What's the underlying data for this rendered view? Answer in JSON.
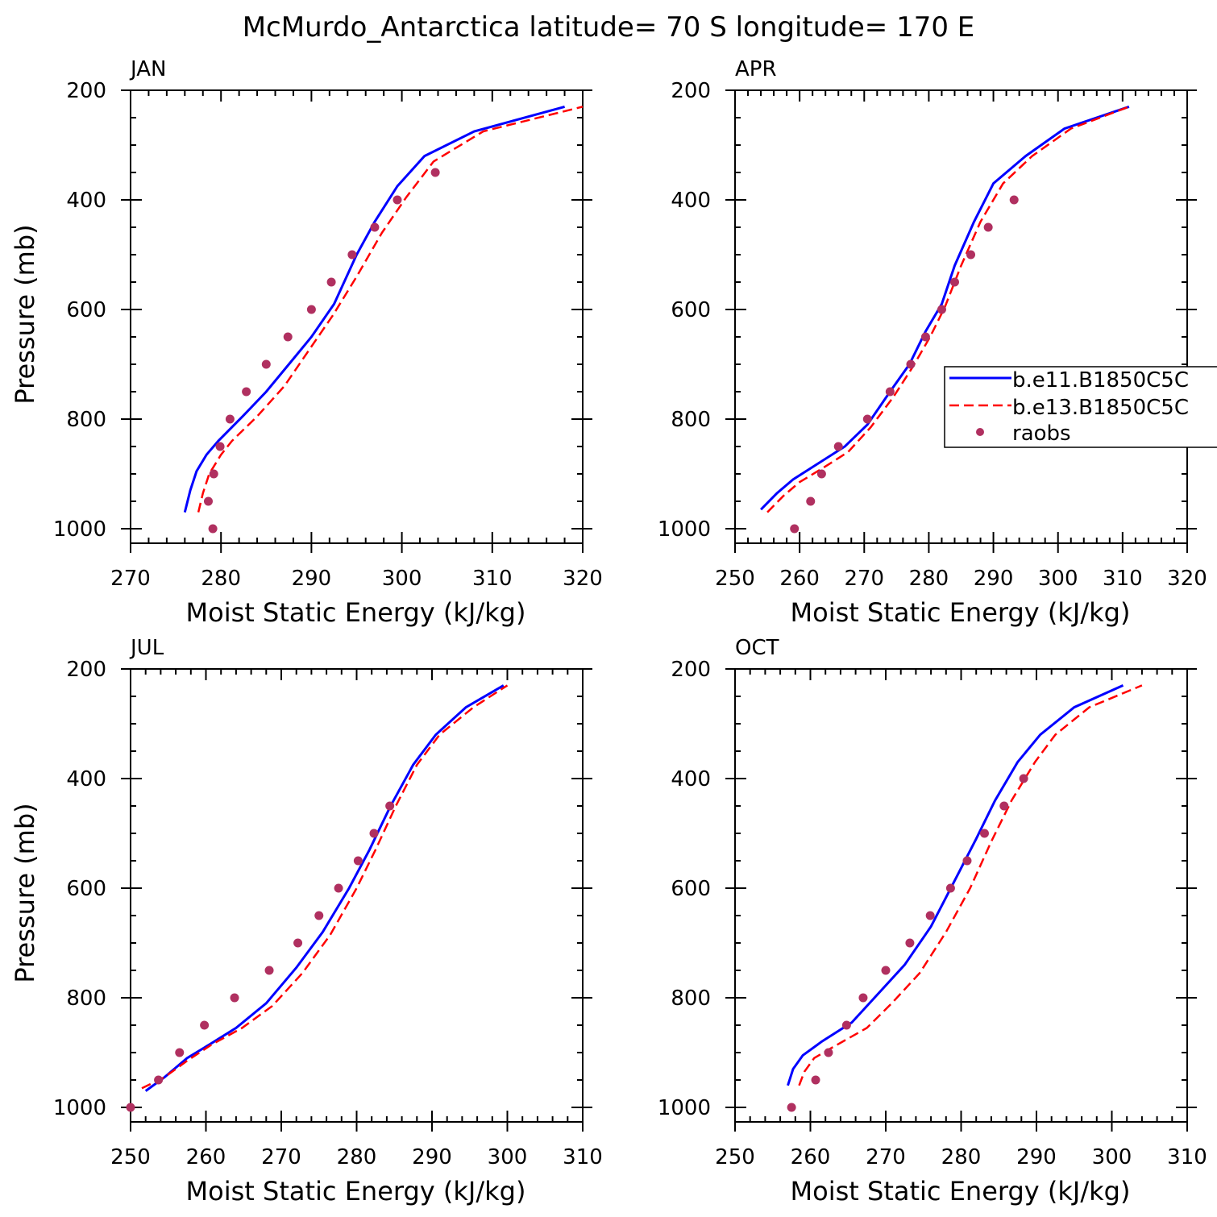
{
  "title": "McMurdo_Antarctica  latitude= 70 S longitude= 170 E",
  "colors": {
    "series1": "#0000ff",
    "series2": "#ff0000",
    "raobs": "#b03060",
    "axis": "#000000"
  },
  "legend": {
    "entries": [
      "b.e11.B1850C5C",
      "b.e13.B1850C5C",
      "raobs"
    ]
  },
  "chart_data": [
    {
      "type": "line",
      "panel": "JAN",
      "xlabel": "Moist Static Energy (kJ/kg)",
      "ylabel": "Pressure (mb)",
      "xlim": [
        270,
        320
      ],
      "ylim": [
        1000,
        200
      ],
      "x_ticks": [
        270,
        280,
        290,
        300,
        310,
        320
      ],
      "y_ticks": [
        200,
        400,
        600,
        800,
        1000
      ],
      "series": [
        {
          "name": "b.e11.B1850C5C",
          "style": "solid",
          "points": [
            [
              276.0,
              970
            ],
            [
              276.6,
              930
            ],
            [
              277.3,
              895
            ],
            [
              278.4,
              865
            ],
            [
              279.7,
              840
            ],
            [
              282.4,
              795
            ],
            [
              285.0,
              750
            ],
            [
              287.5,
              700
            ],
            [
              290.0,
              650
            ],
            [
              292.5,
              590
            ],
            [
              295.0,
              500
            ],
            [
              297.0,
              440
            ],
            [
              299.5,
              375
            ],
            [
              302.5,
              320
            ],
            [
              308.0,
              275
            ],
            [
              318.0,
              230
            ]
          ]
        },
        {
          "name": "b.e13.B1850C5C",
          "style": "dashed",
          "points": [
            [
              277.5,
              970
            ],
            [
              278.0,
              935
            ],
            [
              278.7,
              900
            ],
            [
              280.0,
              865
            ],
            [
              281.2,
              840
            ],
            [
              284.0,
              795
            ],
            [
              287.0,
              740
            ],
            [
              289.9,
              670
            ],
            [
              292.4,
              610
            ],
            [
              295.0,
              540
            ],
            [
              297.8,
              460
            ],
            [
              300.5,
              395
            ],
            [
              303.5,
              330
            ],
            [
              309.0,
              275
            ],
            [
              320.0,
              230
            ]
          ]
        },
        {
          "name": "raobs",
          "style": "marker",
          "points": [
            [
              279.1,
              1000
            ],
            [
              278.6,
              950
            ],
            [
              279.2,
              900
            ],
            [
              279.9,
              850
            ],
            [
              281.0,
              800
            ],
            [
              282.8,
              750
            ],
            [
              285.0,
              700
            ],
            [
              287.4,
              650
            ],
            [
              290.0,
              600
            ],
            [
              292.2,
              550
            ],
            [
              294.5,
              500
            ],
            [
              297.0,
              450
            ],
            [
              299.5,
              400
            ],
            [
              303.7,
              350
            ]
          ]
        }
      ]
    },
    {
      "type": "line",
      "panel": "APR",
      "xlabel": "Moist Static Energy (kJ/kg)",
      "ylabel": "",
      "xlim": [
        250,
        320
      ],
      "ylim": [
        1000,
        200
      ],
      "x_ticks": [
        250,
        260,
        270,
        280,
        290,
        300,
        310,
        320
      ],
      "y_ticks": [
        200,
        400,
        600,
        800,
        1000
      ],
      "series": [
        {
          "name": "b.e11.B1850C5C",
          "style": "solid",
          "points": [
            [
              254.0,
              965
            ],
            [
              256.5,
              935
            ],
            [
              259.0,
              910
            ],
            [
              263.0,
              880
            ],
            [
              267.0,
              850
            ],
            [
              270.5,
              810
            ],
            [
              274.0,
              750
            ],
            [
              277.0,
              700
            ],
            [
              279.5,
              640
            ],
            [
              282.0,
              590
            ],
            [
              284.0,
              520
            ],
            [
              287.0,
              440
            ],
            [
              290.0,
              370
            ],
            [
              295.0,
              320
            ],
            [
              301.0,
              270
            ],
            [
              311.0,
              230
            ]
          ]
        },
        {
          "name": "b.e13.B1850C5C",
          "style": "dashed",
          "points": [
            [
              255.0,
              970
            ],
            [
              257.5,
              940
            ],
            [
              260.0,
              915
            ],
            [
              263.5,
              890
            ],
            [
              267.5,
              860
            ],
            [
              271.0,
              815
            ],
            [
              274.5,
              760
            ],
            [
              277.5,
              705
            ],
            [
              280.2,
              650
            ],
            [
              282.5,
              595
            ],
            [
              285.0,
              520
            ],
            [
              288.0,
              440
            ],
            [
              291.5,
              370
            ],
            [
              296.0,
              320
            ],
            [
              302.0,
              270
            ],
            [
              311.0,
              230
            ]
          ]
        },
        {
          "name": "raobs",
          "style": "marker",
          "points": [
            [
              259.2,
              1000
            ],
            [
              261.7,
              950
            ],
            [
              263.4,
              900
            ],
            [
              266.0,
              850
            ],
            [
              270.5,
              800
            ],
            [
              274.0,
              750
            ],
            [
              277.2,
              700
            ],
            [
              279.5,
              650
            ],
            [
              282.0,
              600
            ],
            [
              284.0,
              550
            ],
            [
              286.5,
              500
            ],
            [
              289.2,
              450
            ],
            [
              293.2,
              400
            ]
          ]
        }
      ]
    },
    {
      "type": "line",
      "panel": "JUL",
      "xlabel": "Moist Static Energy (kJ/kg)",
      "ylabel": "Pressure (mb)",
      "xlim": [
        250,
        310
      ],
      "ylim": [
        1000,
        200
      ],
      "x_ticks": [
        250,
        260,
        270,
        280,
        290,
        300,
        310
      ],
      "y_ticks": [
        200,
        400,
        600,
        800,
        1000
      ],
      "series": [
        {
          "name": "b.e11.B1850C5C",
          "style": "solid",
          "points": [
            [
              252.0,
              970
            ],
            [
              254.5,
              945
            ],
            [
              257.5,
              910
            ],
            [
              260.5,
              885
            ],
            [
              264.0,
              855
            ],
            [
              268.0,
              810
            ],
            [
              272.0,
              745
            ],
            [
              275.5,
              680
            ],
            [
              279.0,
              600
            ],
            [
              281.7,
              530
            ],
            [
              284.5,
              450
            ],
            [
              287.5,
              375
            ],
            [
              290.5,
              320
            ],
            [
              294.5,
              270
            ],
            [
              299.5,
              230
            ]
          ]
        },
        {
          "name": "b.e13.B1850C5C",
          "style": "dashed",
          "points": [
            [
              251.5,
              965
            ],
            [
              254.5,
              945
            ],
            [
              257.5,
              915
            ],
            [
              260.8,
              885
            ],
            [
              264.8,
              855
            ],
            [
              268.8,
              815
            ],
            [
              272.8,
              755
            ],
            [
              276.5,
              685
            ],
            [
              280.0,
              600
            ],
            [
              282.5,
              530
            ],
            [
              285.2,
              450
            ],
            [
              288.0,
              375
            ],
            [
              291.0,
              320
            ],
            [
              295.5,
              270
            ],
            [
              300.0,
              230
            ]
          ]
        },
        {
          "name": "raobs",
          "style": "marker",
          "points": [
            [
              250.0,
              1000
            ],
            [
              253.7,
              950
            ],
            [
              256.5,
              900
            ],
            [
              259.8,
              850
            ],
            [
              263.8,
              800
            ],
            [
              268.4,
              750
            ],
            [
              272.2,
              700
            ],
            [
              275.0,
              650
            ],
            [
              277.6,
              600
            ],
            [
              280.2,
              550
            ],
            [
              282.3,
              500
            ],
            [
              284.4,
              450
            ]
          ]
        }
      ]
    },
    {
      "type": "line",
      "panel": "OCT",
      "xlabel": "Moist Static Energy (kJ/kg)",
      "ylabel": "",
      "xlim": [
        250,
        310
      ],
      "ylim": [
        1000,
        200
      ],
      "x_ticks": [
        250,
        260,
        270,
        280,
        290,
        300,
        310
      ],
      "y_ticks": [
        200,
        400,
        600,
        800,
        1000
      ],
      "series": [
        {
          "name": "b.e11.B1850C5C",
          "style": "solid",
          "points": [
            [
              257.0,
              960
            ],
            [
              257.7,
              930
            ],
            [
              259.0,
              905
            ],
            [
              261.5,
              880
            ],
            [
              265.5,
              845
            ],
            [
              268.5,
              800
            ],
            [
              272.5,
              740
            ],
            [
              276.0,
              670
            ],
            [
              279.0,
              590
            ],
            [
              282.0,
              510
            ],
            [
              284.5,
              440
            ],
            [
              287.5,
              370
            ],
            [
              290.5,
              320
            ],
            [
              295.0,
              270
            ],
            [
              301.5,
              230
            ]
          ]
        },
        {
          "name": "b.e13.B1850C5C",
          "style": "dashed",
          "points": [
            [
              258.5,
              960
            ],
            [
              259.2,
              935
            ],
            [
              260.5,
              910
            ],
            [
              263.0,
              890
            ],
            [
              267.5,
              855
            ],
            [
              270.8,
              810
            ],
            [
              274.5,
              755
            ],
            [
              278.0,
              680
            ],
            [
              281.2,
              600
            ],
            [
              284.0,
              515
            ],
            [
              286.7,
              440
            ],
            [
              289.8,
              370
            ],
            [
              292.5,
              320
            ],
            [
              297.0,
              270
            ],
            [
              304.0,
              230
            ]
          ]
        },
        {
          "name": "raobs",
          "style": "marker",
          "points": [
            [
              257.5,
              1000
            ],
            [
              260.7,
              950
            ],
            [
              262.4,
              900
            ],
            [
              264.8,
              850
            ],
            [
              267.0,
              800
            ],
            [
              270.0,
              750
            ],
            [
              273.2,
              700
            ],
            [
              275.9,
              650
            ],
            [
              278.6,
              600
            ],
            [
              280.8,
              550
            ],
            [
              283.1,
              500
            ],
            [
              285.7,
              450
            ],
            [
              288.3,
              400
            ]
          ]
        }
      ]
    }
  ]
}
